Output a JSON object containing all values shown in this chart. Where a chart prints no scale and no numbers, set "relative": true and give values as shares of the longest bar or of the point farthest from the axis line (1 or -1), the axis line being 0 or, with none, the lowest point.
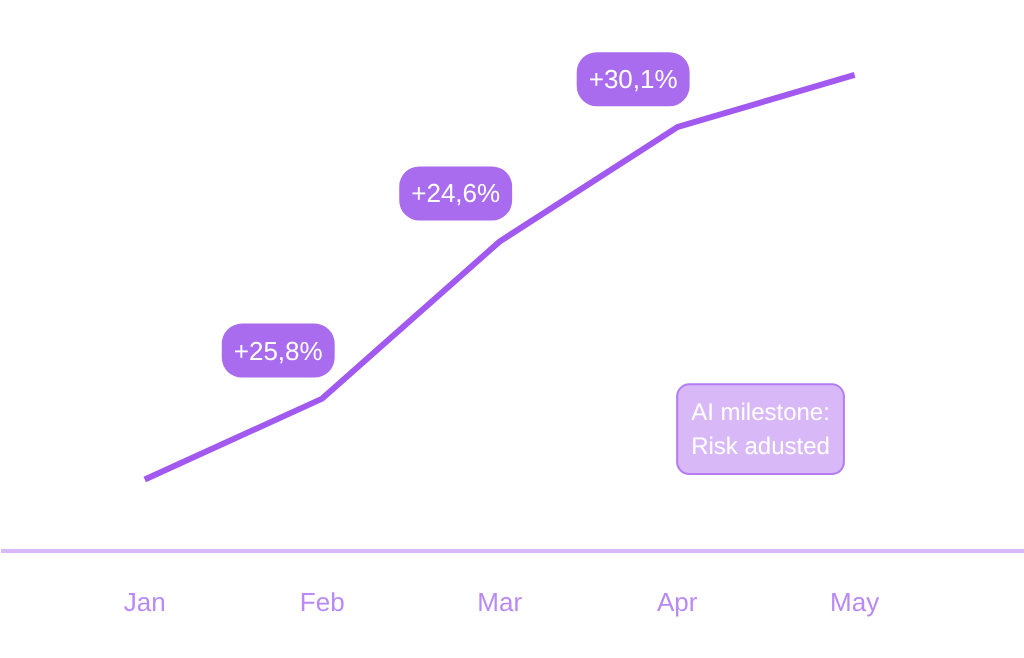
{
  "chart_data": {
    "type": "line",
    "relative": true,
    "categories": [
      "Jan",
      "Feb",
      "Mar",
      "Apr",
      "May"
    ],
    "series": [
      {
        "color": "#a259f0",
        "values": [
          0.15,
          0.32,
          0.65,
          0.89,
          1
        ]
      }
    ],
    "marker": "none",
    "line_style": "solid",
    "annotations": [
      {
        "text": "+25,8%",
        "x": "Feb",
        "y": 0.32
      },
      {
        "text": "+24,6%",
        "x": "Mar",
        "y": 0.65
      },
      {
        "text": "+30,1%",
        "x": "Apr",
        "y": 0.89
      },
      "AI milestone:\nRisk adusted"
    ]
  }
}
